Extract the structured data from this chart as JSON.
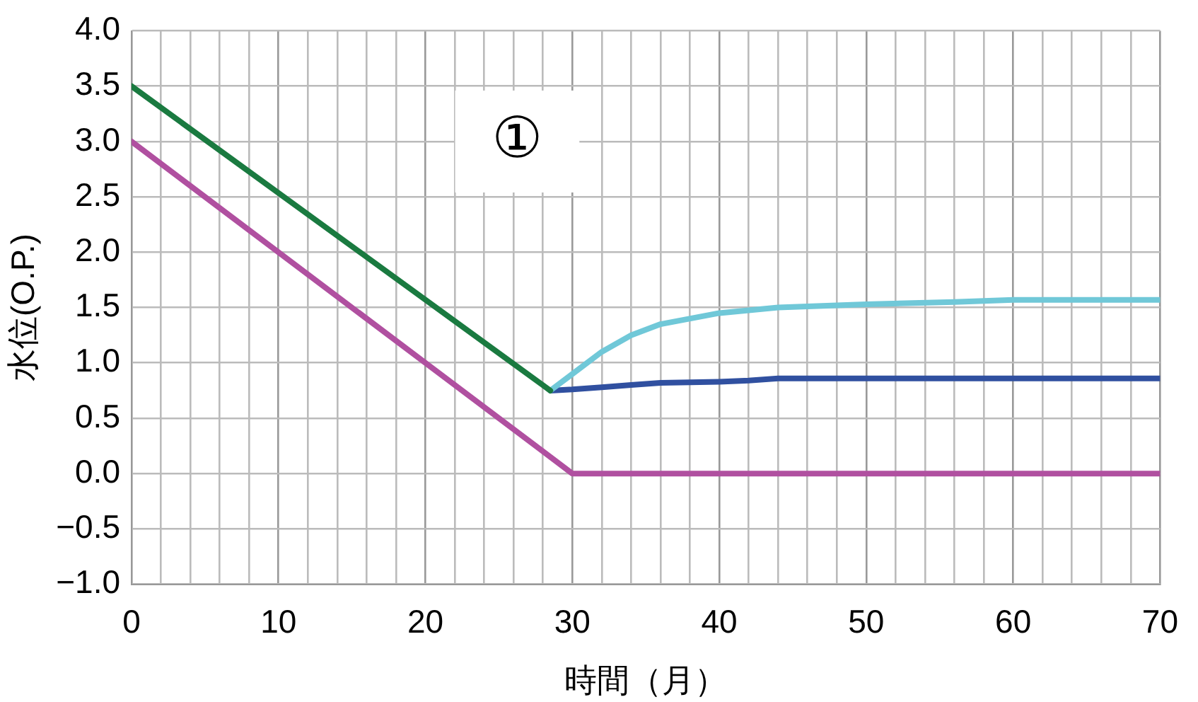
{
  "chart_data": {
    "type": "line",
    "xlabel": "時間（月）",
    "ylabel": "水位(O.P.)",
    "annotations": [
      "①"
    ],
    "xlim": [
      0,
      70
    ],
    "ylim": [
      -1.0,
      4.0
    ],
    "xticks": [
      0,
      {
        "value": 2,
        "label": null
      },
      {
        "value": 4,
        "label": null
      },
      {
        "value": 6,
        "label": null
      },
      {
        "value": 8,
        "label": null
      },
      10,
      {
        "value": 12,
        "label": null
      },
      {
        "value": 14,
        "label": null
      },
      {
        "value": 16,
        "label": null
      },
      {
        "value": 18,
        "label": null
      },
      20,
      {
        "value": 22,
        "label": null
      },
      {
        "value": 24,
        "label": null
      },
      {
        "value": 26,
        "label": null
      },
      {
        "value": 28,
        "label": null
      },
      30,
      {
        "value": 32,
        "label": null
      },
      {
        "value": 34,
        "label": null
      },
      {
        "value": 36,
        "label": null
      },
      {
        "value": 38,
        "label": null
      },
      40,
      {
        "value": 42,
        "label": null
      },
      {
        "value": 44,
        "label": null
      },
      {
        "value": 46,
        "label": null
      },
      {
        "value": 48,
        "label": null
      },
      50,
      {
        "value": 52,
        "label": null
      },
      {
        "value": 54,
        "label": null
      },
      {
        "value": 56,
        "label": null
      },
      {
        "value": 58,
        "label": null
      },
      60,
      {
        "value": 62,
        "label": null
      },
      {
        "value": 64,
        "label": null
      },
      {
        "value": 66,
        "label": null
      },
      {
        "value": 68,
        "label": null
      },
      70
    ],
    "yticks": [
      {
        "value": -1,
        "label": "−1.0"
      },
      {
        "value": -0.5,
        "label": "−0.5"
      },
      {
        "value": 0,
        "label": "0.0"
      },
      {
        "value": 0.5,
        "label": "0.5"
      },
      {
        "value": 1,
        "label": "1.0"
      },
      {
        "value": 1.5,
        "label": "1.5"
      },
      {
        "value": 2,
        "label": "2.0"
      },
      {
        "value": 2.5,
        "label": "2.5"
      },
      {
        "value": 3,
        "label": "3.0"
      },
      {
        "value": 3.5,
        "label": "3.5"
      },
      {
        "value": 4,
        "label": "4.0"
      }
    ],
    "grid": true,
    "legend": false,
    "marker": "none",
    "line_style": "solid",
    "series": [
      {
        "color": "#1a7a40",
        "x": [
          0,
          28.5
        ],
        "values": [
          3.5,
          0.75
        ]
      },
      {
        "color": "#b050a0",
        "x": [
          0,
          30,
          70
        ],
        "values": [
          3.0,
          0.0,
          0.0
        ]
      },
      {
        "color": "#70c8d8",
        "x": [
          28.5,
          30,
          32,
          34,
          36,
          40,
          44,
          50,
          56,
          60,
          70
        ],
        "values": [
          0.75,
          0.9,
          1.1,
          1.25,
          1.35,
          1.45,
          1.5,
          1.53,
          1.55,
          1.57,
          1.57
        ]
      },
      {
        "color": "#3050a0",
        "x": [
          28.5,
          30,
          32,
          34,
          36,
          40,
          42,
          44,
          70
        ],
        "values": [
          0.75,
          0.76,
          0.78,
          0.8,
          0.82,
          0.83,
          0.84,
          0.86,
          0.86
        ]
      }
    ]
  }
}
